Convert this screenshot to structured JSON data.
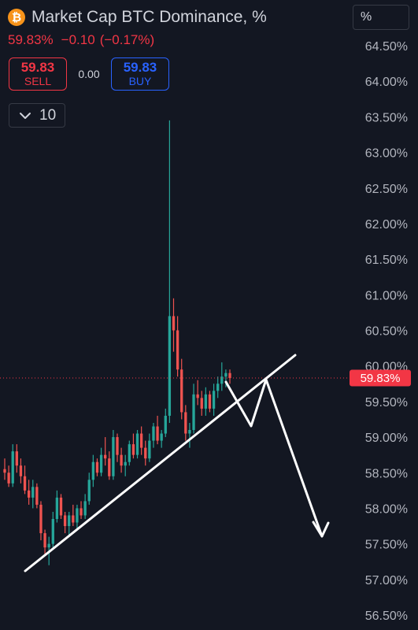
{
  "header": {
    "title": "Market Cap BTC Dominance, %",
    "icon": "bitcoin-icon",
    "last_value": "59.83%",
    "change": "−0.10",
    "change_pct": "(−0.17%)"
  },
  "trade": {
    "sell_price": "59.83",
    "sell_label": "SELL",
    "buy_price": "59.83",
    "buy_label": "BUY",
    "spread": "0.00"
  },
  "quantity": {
    "value": "10"
  },
  "unit_selector": {
    "label": "%"
  },
  "colors": {
    "up": "#26a69a",
    "down": "#ef5350",
    "background": "#131722",
    "price_line": "#f23645",
    "sell": "#f23645",
    "buy": "#2962ff"
  },
  "chart_data": {
    "type": "candlestick",
    "y_axis": {
      "range": [
        56.5,
        64.5
      ],
      "ticks": [
        "64.50%",
        "64.00%",
        "63.50%",
        "63.00%",
        "62.50%",
        "62.00%",
        "61.50%",
        "61.00%",
        "60.50%",
        "60.00%",
        "59.50%",
        "59.00%",
        "58.50%",
        "58.00%",
        "57.50%",
        "57.00%",
        "56.50%"
      ]
    },
    "last_price": 59.83,
    "last_price_label": "59.83%",
    "candles": [
      [
        58.55,
        58.7,
        58.4,
        58.5
      ],
      [
        58.5,
        58.6,
        58.3,
        58.35
      ],
      [
        58.35,
        58.9,
        58.3,
        58.8
      ],
      [
        58.8,
        58.9,
        58.5,
        58.6
      ],
      [
        58.6,
        58.7,
        58.35,
        58.45
      ],
      [
        58.45,
        58.6,
        58.2,
        58.25
      ],
      [
        58.25,
        58.4,
        58.05,
        58.15
      ],
      [
        58.15,
        58.4,
        58.0,
        58.3
      ],
      [
        58.3,
        58.35,
        58.0,
        58.05
      ],
      [
        58.05,
        58.1,
        57.55,
        57.65
      ],
      [
        57.65,
        57.7,
        57.35,
        57.45
      ],
      [
        57.45,
        57.6,
        57.2,
        57.5
      ],
      [
        57.5,
        57.95,
        57.45,
        57.85
      ],
      [
        57.85,
        58.25,
        57.8,
        58.15
      ],
      [
        58.15,
        58.2,
        57.85,
        57.9
      ],
      [
        57.9,
        57.95,
        57.65,
        57.75
      ],
      [
        57.75,
        57.95,
        57.6,
        57.9
      ],
      [
        57.9,
        58.05,
        57.75,
        57.8
      ],
      [
        57.8,
        58.05,
        57.7,
        58.0
      ],
      [
        58.0,
        58.1,
        57.85,
        57.9
      ],
      [
        57.9,
        58.2,
        57.85,
        58.1
      ],
      [
        58.1,
        58.5,
        58.05,
        58.4
      ],
      [
        58.4,
        58.75,
        58.3,
        58.65
      ],
      [
        58.65,
        58.7,
        58.45,
        58.5
      ],
      [
        58.5,
        58.85,
        58.45,
        58.75
      ],
      [
        58.75,
        59.0,
        58.6,
        58.7
      ],
      [
        58.7,
        58.8,
        58.4,
        58.45
      ],
      [
        58.45,
        59.1,
        58.4,
        59.0
      ],
      [
        59.0,
        59.05,
        58.65,
        58.75
      ],
      [
        58.75,
        58.85,
        58.5,
        58.6
      ],
      [
        58.6,
        58.75,
        58.45,
        58.65
      ],
      [
        58.65,
        58.95,
        58.6,
        58.9
      ],
      [
        58.9,
        59.05,
        58.7,
        58.75
      ],
      [
        58.75,
        59.1,
        58.7,
        59.05
      ],
      [
        59.05,
        59.15,
        58.75,
        58.85
      ],
      [
        58.85,
        58.95,
        58.6,
        58.7
      ],
      [
        58.7,
        59.05,
        58.65,
        58.95
      ],
      [
        58.95,
        59.2,
        58.85,
        59.15
      ],
      [
        59.15,
        59.3,
        58.9,
        58.95
      ],
      [
        58.95,
        59.1,
        58.85,
        59.05
      ],
      [
        59.05,
        59.4,
        59.0,
        59.3
      ],
      [
        59.3,
        63.45,
        59.2,
        60.7
      ],
      [
        60.7,
        60.95,
        60.2,
        60.5
      ],
      [
        60.5,
        60.7,
        59.85,
        59.95
      ],
      [
        59.95,
        60.1,
        59.25,
        59.35
      ],
      [
        59.35,
        59.45,
        58.95,
        59.05
      ],
      [
        59.05,
        59.2,
        58.85,
        59.1
      ],
      [
        59.1,
        59.75,
        59.05,
        59.6
      ],
      [
        59.6,
        59.8,
        59.45,
        59.55
      ],
      [
        59.55,
        59.65,
        59.3,
        59.4
      ],
      [
        59.4,
        59.7,
        59.3,
        59.6
      ],
      [
        59.6,
        59.65,
        59.35,
        59.4
      ],
      [
        59.4,
        59.75,
        59.3,
        59.65
      ],
      [
        59.65,
        59.85,
        59.55,
        59.75
      ],
      [
        59.75,
        60.05,
        59.65,
        59.85
      ],
      [
        59.85,
        59.95,
        59.7,
        59.9
      ],
      [
        59.9,
        59.95,
        59.75,
        59.83
      ]
    ]
  }
}
